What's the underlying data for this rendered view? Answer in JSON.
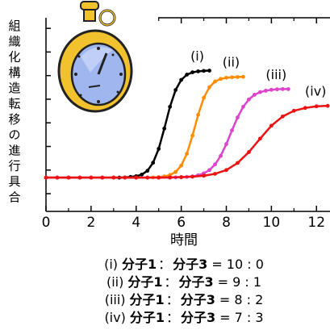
{
  "chart_data": {
    "type": "scatter",
    "ylabel": "組織化構造転移の進行具合",
    "xlabel": "時間",
    "xlim": [
      0,
      12.6
    ],
    "xticks": [
      0,
      2,
      4,
      6,
      8,
      10,
      12
    ],
    "xminorticks": [
      1,
      3,
      5,
      7,
      9,
      11
    ],
    "ylim": [
      0,
      8.2
    ],
    "yticks": [
      0.75,
      1.75,
      2.75,
      3.75,
      4.75,
      5.75,
      6.75,
      7.75
    ],
    "series": [
      {
        "name": "(i)",
        "color": "#000000",
        "x": [
          0,
          0.5,
          1,
          1.5,
          2,
          2.5,
          3,
          3.25,
          3.5,
          3.75,
          4,
          4.25,
          4.5,
          4.75,
          5,
          5.25,
          5.5,
          5.75,
          6,
          6.25,
          6.5,
          6.75,
          7,
          7.25
        ],
        "values": [
          1.43,
          1.43,
          1.43,
          1.43,
          1.43,
          1.43,
          1.43,
          1.43,
          1.44,
          1.46,
          1.49,
          1.56,
          1.72,
          2.06,
          2.65,
          3.51,
          4.43,
          5.14,
          5.57,
          5.79,
          5.89,
          5.93,
          5.95,
          5.96
        ]
      },
      {
        "name": "(ii)",
        "color": "#ff8c00",
        "x": [
          0,
          0.5,
          1,
          1.5,
          2,
          2.5,
          3,
          3.5,
          4,
          4.5,
          4.75,
          5,
          5.25,
          5.5,
          5.75,
          6,
          6.25,
          6.5,
          6.75,
          7,
          7.25,
          7.5,
          7.75,
          8,
          8.25,
          8.5,
          8.75
        ],
        "values": [
          1.43,
          1.43,
          1.43,
          1.43,
          1.43,
          1.43,
          1.43,
          1.43,
          1.43,
          1.43,
          1.44,
          1.45,
          1.48,
          1.54,
          1.67,
          1.94,
          2.44,
          3.21,
          4.09,
          4.81,
          5.26,
          5.5,
          5.61,
          5.66,
          5.68,
          5.69,
          5.7
        ]
      },
      {
        "name": "(iii)",
        "color": "#dd44cc",
        "x": [
          0,
          0.5,
          1,
          1.5,
          2,
          2.5,
          3,
          3.5,
          4,
          4.5,
          5,
          5.5,
          5.75,
          6,
          6.25,
          6.5,
          6.75,
          7,
          7.25,
          7.5,
          7.75,
          8,
          8.25,
          8.5,
          8.75,
          9,
          9.25,
          9.5,
          9.75,
          10,
          10.25,
          10.5,
          10.75
        ],
        "values": [
          1.43,
          1.43,
          1.43,
          1.43,
          1.43,
          1.43,
          1.43,
          1.43,
          1.43,
          1.43,
          1.43,
          1.43,
          1.44,
          1.45,
          1.46,
          1.48,
          1.53,
          1.61,
          1.75,
          1.99,
          2.35,
          2.85,
          3.43,
          3.98,
          4.43,
          4.74,
          4.94,
          5.05,
          5.11,
          5.15,
          5.17,
          5.18,
          5.18
        ]
      },
      {
        "name": "(iv)",
        "color": "#ee1111",
        "x": [
          0,
          0.5,
          1,
          1.5,
          2,
          2.5,
          3,
          3.5,
          4,
          4.5,
          5,
          5.5,
          6,
          6.5,
          7,
          7.5,
          8,
          8.5,
          9,
          9.5,
          10,
          10.5,
          11,
          11.5,
          12,
          12.5
        ],
        "values": [
          1.43,
          1.43,
          1.43,
          1.43,
          1.43,
          1.43,
          1.43,
          1.43,
          1.43,
          1.43,
          1.43,
          1.44,
          1.45,
          1.47,
          1.51,
          1.59,
          1.75,
          2.05,
          2.51,
          3.08,
          3.63,
          4.02,
          4.26,
          4.38,
          4.45,
          4.47
        ]
      }
    ],
    "notes": [
      {
        "id": "(i)",
        "a": "分子1",
        "sep": "：",
        "b": "分子3",
        "ratio": "= 10 : 0"
      },
      {
        "id": "(ii)",
        "a": "分子1",
        "sep": "：",
        "b": "分子3",
        "ratio": "=  9 : 1"
      },
      {
        "id": "(iii)",
        "a": "分子1",
        "sep": "：",
        "b": "分子3",
        "ratio": "=  8 : 2"
      },
      {
        "id": "(iv)",
        "a": "分子1",
        "sep": "：",
        "b": "分子3",
        "ratio": "=  7 : 3"
      }
    ]
  }
}
